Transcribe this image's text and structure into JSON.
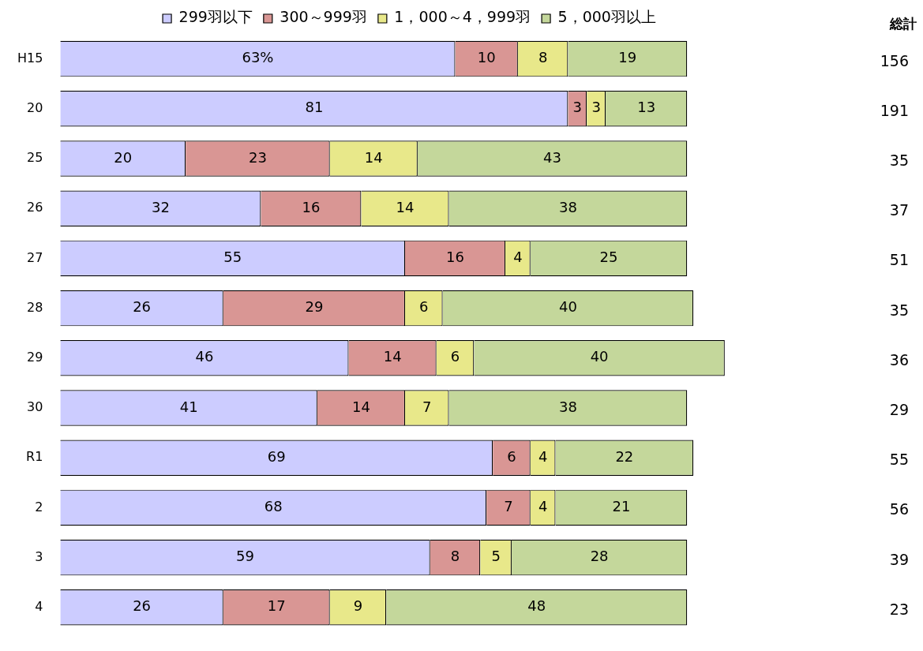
{
  "chart_data": {
    "type": "bar",
    "orientation": "horizontal",
    "stacked": true,
    "legend": "top",
    "categories": [
      "H15",
      "20",
      "25",
      "26",
      "27",
      "28",
      "29",
      "30",
      "R1",
      "2",
      "3",
      "4"
    ],
    "series": [
      {
        "name": "299羽以下",
        "color": "#ccccff",
        "values": [
          63,
          81,
          20,
          32,
          55,
          26,
          46,
          41,
          69,
          68,
          59,
          26
        ],
        "value_labels": [
          "63%",
          "81",
          "20",
          "32",
          "55",
          "26",
          "46",
          "41",
          "69",
          "68",
          "59",
          "26"
        ]
      },
      {
        "name": "300～999羽",
        "color": "#d99694",
        "values": [
          10,
          3,
          23,
          16,
          16,
          29,
          14,
          14,
          6,
          7,
          8,
          17
        ],
        "value_labels": [
          "10",
          "3",
          "23",
          "16",
          "16",
          "29",
          "14",
          "14",
          "6",
          "7",
          "8",
          "17"
        ]
      },
      {
        "name": "1，000～4，999羽",
        "color": "#e8e88a",
        "values": [
          8,
          3,
          14,
          14,
          4,
          6,
          6,
          7,
          4,
          4,
          5,
          9
        ],
        "value_labels": [
          "8",
          "3",
          "14",
          "14",
          "4",
          "6",
          "6",
          "7",
          "4",
          "4",
          "5",
          "9"
        ]
      },
      {
        "name": "5，000羽以上",
        "color": "#c4d79b",
        "values": [
          19,
          13,
          43,
          38,
          25,
          40,
          40,
          38,
          22,
          21,
          28,
          48
        ],
        "value_labels": [
          "19",
          "13",
          "43",
          "38",
          "25",
          "40",
          "40",
          "38",
          "22",
          "21",
          "28",
          "48"
        ]
      }
    ],
    "annotations": [
      "総計",
      "156",
      "191",
      "35",
      "37",
      "51",
      "35",
      "36",
      "29",
      "55",
      "56",
      "39",
      "23"
    ]
  }
}
